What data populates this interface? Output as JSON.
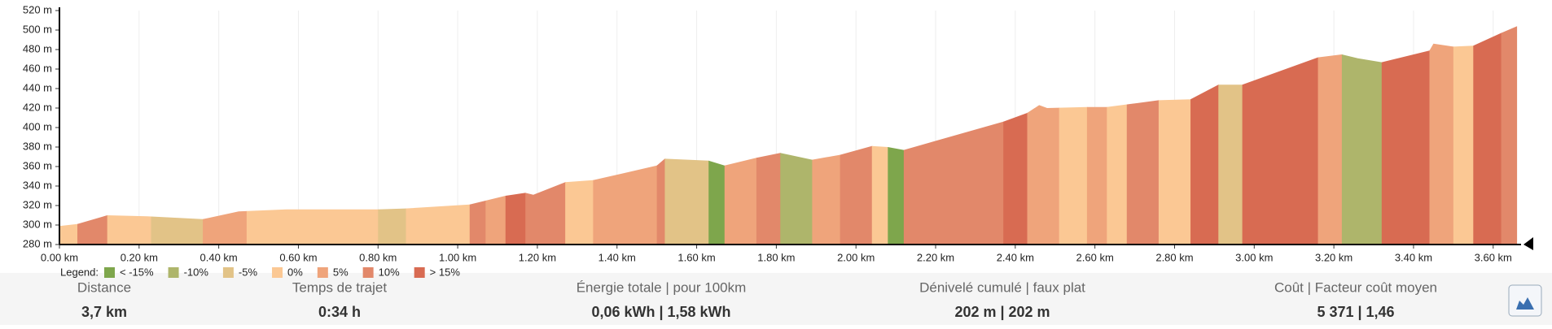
{
  "chart_data": {
    "type": "area",
    "x": [
      0,
      0.045,
      0.12,
      0.22,
      0.36,
      0.45,
      0.57,
      0.8,
      0.87,
      1.03,
      1.12,
      1.17,
      1.19,
      1.27,
      1.34,
      1.5,
      1.52,
      1.63,
      1.67,
      1.75,
      1.81,
      1.89,
      1.96,
      2.04,
      2.08,
      2.12,
      2.37,
      2.43,
      2.46,
      2.48,
      2.58,
      2.63,
      2.76,
      2.84,
      2.91,
      2.97,
      3.16,
      3.22,
      3.26,
      3.32,
      3.44,
      3.45,
      3.5,
      3.55,
      3.62,
      3.66
    ],
    "values": [
      299,
      301,
      310,
      309,
      306,
      314,
      316,
      316,
      317,
      321,
      330,
      333,
      331,
      344,
      346,
      361,
      368,
      366,
      361,
      369,
      374,
      367,
      372,
      381,
      380,
      377,
      406,
      415,
      423,
      420,
      421,
      421,
      428,
      429,
      444,
      444,
      472,
      475,
      471,
      467,
      479,
      486,
      483,
      484,
      497,
      504
    ],
    "bands": [
      {
        "from": 0,
        "to": 0.045,
        "class": 3
      },
      {
        "from": 0.045,
        "to": 0.12,
        "class": 5
      },
      {
        "from": 0.12,
        "to": 0.23,
        "class": 3
      },
      {
        "from": 0.23,
        "to": 0.36,
        "class": 2
      },
      {
        "from": 0.36,
        "to": 0.47,
        "class": 4
      },
      {
        "from": 0.47,
        "to": 0.8,
        "class": 3
      },
      {
        "from": 0.8,
        "to": 0.87,
        "class": 2
      },
      {
        "from": 0.87,
        "to": 1.03,
        "class": 3
      },
      {
        "from": 1.03,
        "to": 1.07,
        "class": 5
      },
      {
        "from": 1.07,
        "to": 1.12,
        "class": 4
      },
      {
        "from": 1.12,
        "to": 1.17,
        "class": 6
      },
      {
        "from": 1.17,
        "to": 1.27,
        "class": 5
      },
      {
        "from": 1.27,
        "to": 1.34,
        "class": 3
      },
      {
        "from": 1.34,
        "to": 1.5,
        "class": 4
      },
      {
        "from": 1.5,
        "to": 1.52,
        "class": 5
      },
      {
        "from": 1.52,
        "to": 1.63,
        "class": 2
      },
      {
        "from": 1.63,
        "to": 1.67,
        "class": 0
      },
      {
        "from": 1.67,
        "to": 1.75,
        "class": 4
      },
      {
        "from": 1.75,
        "to": 1.81,
        "class": 5
      },
      {
        "from": 1.81,
        "to": 1.89,
        "class": 1
      },
      {
        "from": 1.89,
        "to": 1.96,
        "class": 4
      },
      {
        "from": 1.96,
        "to": 2.04,
        "class": 5
      },
      {
        "from": 2.04,
        "to": 2.08,
        "class": 3
      },
      {
        "from": 2.08,
        "to": 2.12,
        "class": 0
      },
      {
        "from": 2.12,
        "to": 2.37,
        "class": 5
      },
      {
        "from": 2.37,
        "to": 2.43,
        "class": 6
      },
      {
        "from": 2.43,
        "to": 2.51,
        "class": 4
      },
      {
        "from": 2.51,
        "to": 2.58,
        "class": 3
      },
      {
        "from": 2.58,
        "to": 2.63,
        "class": 4
      },
      {
        "from": 2.63,
        "to": 2.68,
        "class": 3
      },
      {
        "from": 2.68,
        "to": 2.76,
        "class": 5
      },
      {
        "from": 2.76,
        "to": 2.84,
        "class": 3
      },
      {
        "from": 2.84,
        "to": 2.91,
        "class": 6
      },
      {
        "from": 2.91,
        "to": 2.97,
        "class": 2
      },
      {
        "from": 2.97,
        "to": 3.16,
        "class": 6
      },
      {
        "from": 3.16,
        "to": 3.22,
        "class": 4
      },
      {
        "from": 3.22,
        "to": 3.32,
        "class": 1
      },
      {
        "from": 3.32,
        "to": 3.44,
        "class": 6
      },
      {
        "from": 3.44,
        "to": 3.5,
        "class": 4
      },
      {
        "from": 3.5,
        "to": 3.55,
        "class": 3
      },
      {
        "from": 3.55,
        "to": 3.62,
        "class": 6
      },
      {
        "from": 3.62,
        "to": 3.67,
        "class": 5
      }
    ],
    "legend_title": "Legend:",
    "legend": [
      {
        "label": "< -15%",
        "color": "#7ea64c"
      },
      {
        "label": "-10%",
        "color": "#aeb56b"
      },
      {
        "label": "-5%",
        "color": "#e2c387"
      },
      {
        "label": "0%",
        "color": "#fbc894"
      },
      {
        "label": "5%",
        "color": "#efa47b"
      },
      {
        "label": "10%",
        "color": "#e2886a"
      },
      {
        "label": "> 15%",
        "color": "#d86b52"
      }
    ],
    "xlim": [
      0,
      3.67
    ],
    "ylim": [
      280,
      520
    ],
    "grid": true,
    "xticks": [
      {
        "value": 0,
        "label": "0.00 km"
      },
      {
        "value": 0.2,
        "label": "0.20 km"
      },
      {
        "value": 0.4,
        "label": "0.40 km"
      },
      {
        "value": 0.6,
        "label": "0.60 km"
      },
      {
        "value": 0.8,
        "label": "0.80 km"
      },
      {
        "value": 1.0,
        "label": "1.00 km"
      },
      {
        "value": 1.2,
        "label": "1.20 km"
      },
      {
        "value": 1.4,
        "label": "1.40 km"
      },
      {
        "value": 1.6,
        "label": "1.60 km"
      },
      {
        "value": 1.8,
        "label": "1.80 km"
      },
      {
        "value": 2.0,
        "label": "2.00 km"
      },
      {
        "value": 2.2,
        "label": "2.20 km"
      },
      {
        "value": 2.4,
        "label": "2.40 km"
      },
      {
        "value": 2.6,
        "label": "2.60 km"
      },
      {
        "value": 2.8,
        "label": "2.80 km"
      },
      {
        "value": 3.0,
        "label": "3.00 km"
      },
      {
        "value": 3.2,
        "label": "3.20 km"
      },
      {
        "value": 3.4,
        "label": "3.40 km"
      },
      {
        "value": 3.6,
        "label": "3.60 km"
      }
    ],
    "yticks": [
      {
        "value": 280,
        "label": "280 m"
      },
      {
        "value": 300,
        "label": "300 m"
      },
      {
        "value": 320,
        "label": "320 m"
      },
      {
        "value": 340,
        "label": "340 m"
      },
      {
        "value": 360,
        "label": "360 m"
      },
      {
        "value": 380,
        "label": "380 m"
      },
      {
        "value": 400,
        "label": "400 m"
      },
      {
        "value": 420,
        "label": "420 m"
      },
      {
        "value": 440,
        "label": "440 m"
      },
      {
        "value": 460,
        "label": "460 m"
      },
      {
        "value": 480,
        "label": "480 m"
      },
      {
        "value": 500,
        "label": "500 m"
      },
      {
        "value": 520,
        "label": "520 m"
      }
    ]
  },
  "stats": [
    {
      "label": "Distance",
      "value": "3,7 km"
    },
    {
      "label": "Temps de trajet",
      "value": "0:34 h"
    },
    {
      "label": "Énergie totale | pour 100km",
      "value": "0,06 kWh | 1,58 kWh"
    },
    {
      "label": "Dénivelé cumulé | faux plat",
      "value": "202 m | 202 m"
    },
    {
      "label": "Coût | Facteur coût moyen",
      "value": "5 371 | 1,46"
    }
  ]
}
